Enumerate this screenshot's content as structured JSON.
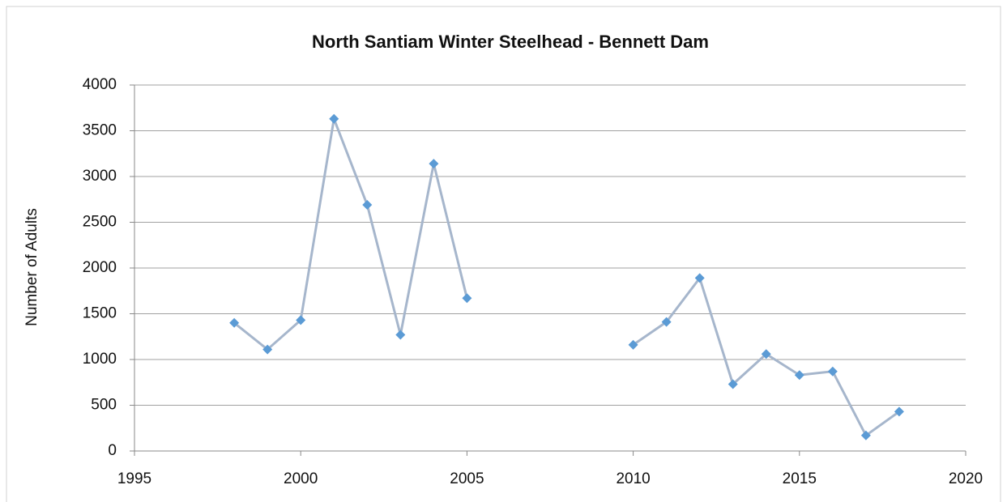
{
  "chart_data": {
    "type": "line",
    "title": "North Santiam Winter Steelhead - Bennett Dam",
    "y_label": "Number of Adults",
    "x": [
      1998,
      1999,
      2000,
      2001,
      2002,
      2003,
      2004,
      2005,
      2006,
      2007,
      2008,
      2009,
      2010,
      2011,
      2012,
      2013,
      2014,
      2015,
      2016,
      2017,
      2018
    ],
    "series": [
      {
        "color": "#5b9bd5",
        "line_color": "#a6b6cc",
        "values": [
          1400,
          1110,
          1430,
          3630,
          2690,
          1270,
          3140,
          1670,
          null,
          null,
          null,
          null,
          1160,
          1410,
          1890,
          730,
          1060,
          830,
          870,
          170,
          430
        ]
      }
    ],
    "xlim": [
      1995,
      2020
    ],
    "xticks": [
      1995,
      2000,
      2005,
      2010,
      2015,
      2020
    ],
    "ylim": [
      0,
      4000
    ],
    "yticks": [
      0,
      500,
      1000,
      1500,
      2000,
      2500,
      3000,
      3500,
      4000
    ],
    "grid": true
  }
}
